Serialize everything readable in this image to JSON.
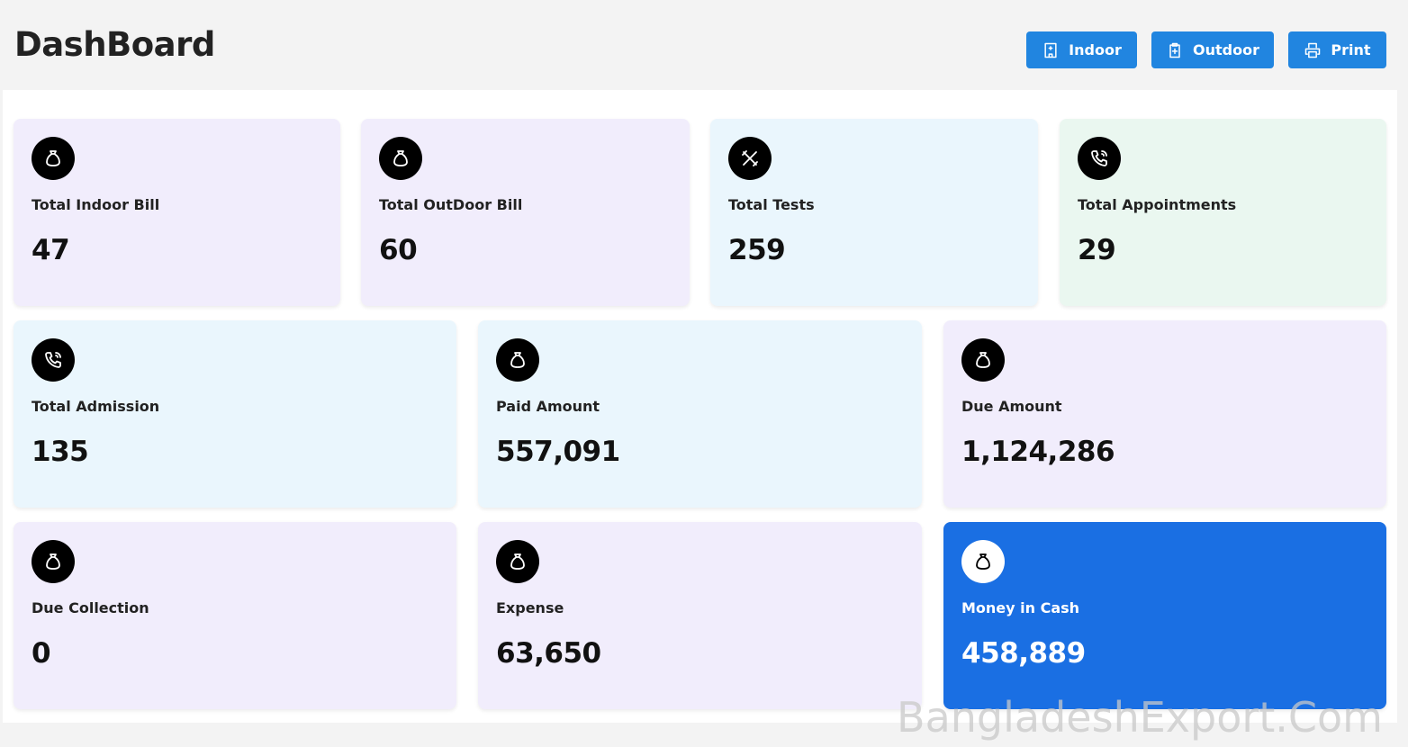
{
  "header": {
    "title": "DashBoard",
    "buttons": [
      "Indoor",
      "Outdoor",
      "Print"
    ]
  },
  "cards": [
    {
      "label": "Total Indoor Bill",
      "value": "47"
    },
    {
      "label": "Total OutDoor Bill",
      "value": "60"
    },
    {
      "label": "Total Tests",
      "value": "259"
    },
    {
      "label": "Total Appointments",
      "value": "29"
    },
    {
      "label": "Total Admission",
      "value": "135"
    },
    {
      "label": "Paid Amount",
      "value": "557,091"
    },
    {
      "label": "Due Amount",
      "value": "1,124,286"
    },
    {
      "label": "Due Collection",
      "value": "0"
    },
    {
      "label": "Expense",
      "value": "63,650"
    },
    {
      "label": "Money in Cash",
      "value": "458,889"
    }
  ],
  "watermark": "BangladeshExport.Com"
}
